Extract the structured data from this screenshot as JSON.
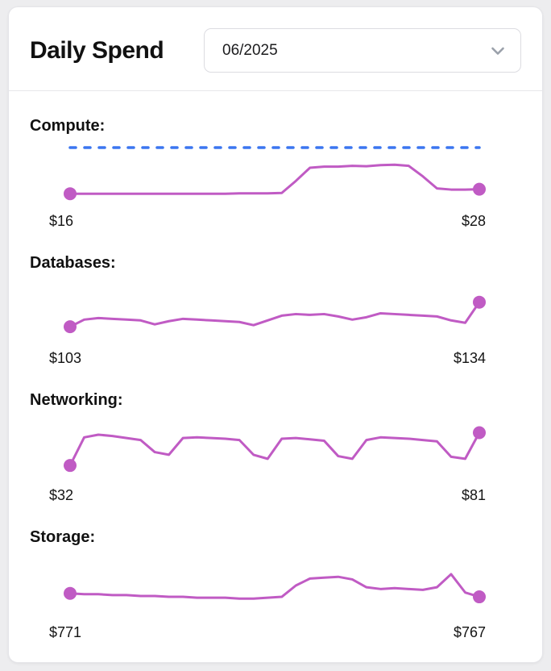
{
  "header": {
    "title": "Daily Spend",
    "month_select": {
      "value": "06/2025",
      "icon": "chevron-down-icon"
    }
  },
  "colors": {
    "accent": "#c05bc4",
    "threshold": "#3b76f0"
  },
  "chart_data": [
    {
      "type": "line",
      "variant": "sparkline",
      "title": "Compute:",
      "first_value_label": "$16",
      "last_value_label": "$28",
      "values": [
        16,
        16,
        16,
        16,
        16,
        16,
        16,
        16,
        16,
        16,
        16,
        16,
        17,
        17,
        17,
        18,
        50,
        85,
        88,
        88,
        90,
        89,
        92,
        93,
        90,
        62,
        30,
        27,
        27,
        28
      ],
      "ylim": [
        10,
        100
      ],
      "threshold": {
        "visible": true,
        "style": "dashed",
        "color": "#3b76f0"
      },
      "grid": false,
      "legend": false
    },
    {
      "type": "line",
      "variant": "sparkline",
      "title": "Databases:",
      "first_value_label": "$103",
      "last_value_label": "$134",
      "values": [
        103,
        112,
        114,
        113,
        112,
        111,
        106,
        110,
        113,
        112,
        111,
        110,
        109,
        105,
        111,
        117,
        119,
        118,
        119,
        116,
        112,
        115,
        120,
        119,
        118,
        117,
        116,
        111,
        108,
        134
      ],
      "ylim": [
        95,
        150
      ],
      "grid": false,
      "legend": false
    },
    {
      "type": "line",
      "variant": "sparkline",
      "title": "Networking:",
      "first_value_label": "$32",
      "last_value_label": "$81",
      "values": [
        32,
        74,
        78,
        76,
        73,
        70,
        52,
        48,
        73,
        74,
        73,
        72,
        70,
        48,
        42,
        72,
        73,
        71,
        69,
        46,
        42,
        70,
        74,
        73,
        72,
        70,
        68,
        45,
        42,
        81
      ],
      "ylim": [
        25,
        90
      ],
      "grid": false,
      "legend": false
    },
    {
      "type": "line",
      "variant": "sparkline",
      "title": "Storage:",
      "first_value_label": "$771",
      "last_value_label": "$767",
      "values": [
        771,
        770,
        770,
        769,
        769,
        768,
        768,
        767,
        767,
        766,
        766,
        766,
        765,
        765,
        766,
        767,
        780,
        788,
        789,
        790,
        787,
        778,
        776,
        777,
        776,
        775,
        778,
        793,
        772,
        767
      ],
      "ylim": [
        755,
        805
      ],
      "grid": false,
      "legend": false
    }
  ]
}
